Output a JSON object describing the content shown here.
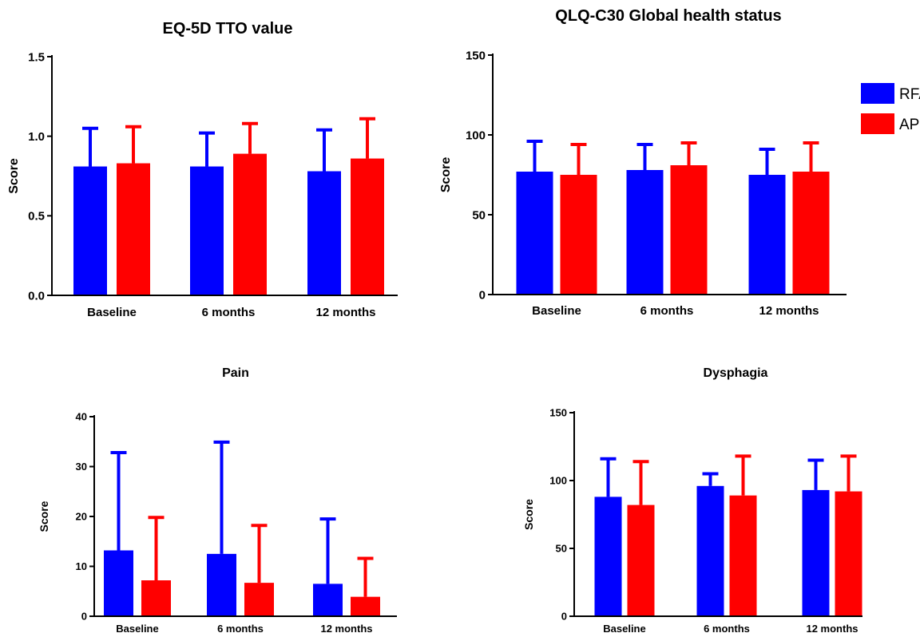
{
  "legend": {
    "items": [
      {
        "label": "RFA",
        "color": "#0000ff"
      },
      {
        "label": "APC",
        "color": "#ff0000"
      }
    ]
  },
  "chart_data": [
    {
      "type": "bar",
      "title": "EQ-5D TTO value",
      "ylabel": "Score",
      "ylim": [
        0,
        1.5
      ],
      "yticks": [
        "0.0",
        "0.5",
        "1.0",
        "1.5"
      ],
      "categories": [
        "Baseline",
        "6 months",
        "12 months"
      ],
      "series": [
        {
          "name": "RFA",
          "values": [
            0.81,
            0.81,
            0.78
          ],
          "error_upper": [
            1.05,
            1.02,
            1.04
          ]
        },
        {
          "name": "APC",
          "values": [
            0.83,
            0.89,
            0.86
          ],
          "error_upper": [
            1.06,
            1.08,
            1.11
          ]
        }
      ]
    },
    {
      "type": "bar",
      "title": "QLQ-C30 Global health status",
      "ylabel": "Score",
      "ylim": [
        0,
        150
      ],
      "yticks": [
        "0",
        "50",
        "100",
        "150"
      ],
      "categories": [
        "Baseline",
        "6 months",
        "12 months"
      ],
      "series": [
        {
          "name": "RFA",
          "values": [
            77,
            78,
            75
          ],
          "error_upper": [
            96,
            94,
            91
          ]
        },
        {
          "name": "APC",
          "values": [
            75,
            81,
            77
          ],
          "error_upper": [
            94,
            95,
            95
          ]
        }
      ]
    },
    {
      "type": "bar",
      "title": "Pain",
      "ylabel": "Score",
      "ylim": [
        0,
        40
      ],
      "yticks": [
        "0",
        "10",
        "20",
        "30",
        "40"
      ],
      "categories": [
        "Baseline",
        "6 months",
        "12 months"
      ],
      "series": [
        {
          "name": "RFA",
          "values": [
            13.2,
            12.5,
            6.5
          ],
          "error_upper": [
            32.8,
            34.9,
            19.5
          ]
        },
        {
          "name": "APC",
          "values": [
            7.2,
            6.7,
            3.9
          ],
          "error_upper": [
            19.8,
            18.2,
            11.6
          ]
        }
      ]
    },
    {
      "type": "bar",
      "title": "Dysphagia",
      "ylabel": "Score",
      "ylim": [
        0,
        150
      ],
      "yticks": [
        "0",
        "50",
        "100",
        "150"
      ],
      "categories": [
        "Baseline",
        "6 months",
        "12 months"
      ],
      "series": [
        {
          "name": "RFA",
          "values": [
            88,
            96,
            93
          ],
          "error_upper": [
            116,
            105,
            115
          ]
        },
        {
          "name": "APC",
          "values": [
            82,
            89,
            92
          ],
          "error_upper": [
            114,
            118,
            118
          ]
        }
      ]
    }
  ]
}
